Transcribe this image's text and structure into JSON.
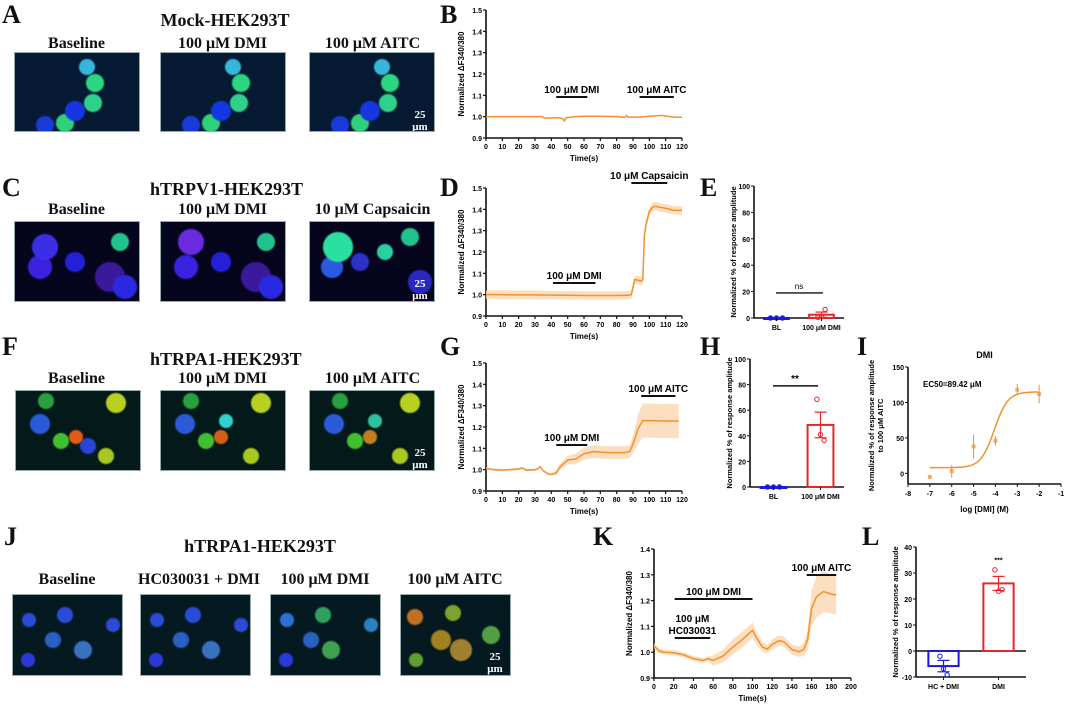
{
  "figure": {
    "panels": {
      "A": {
        "label": "A",
        "title": "Mock-HEK293T",
        "conditions": [
          "Baseline",
          "100 μM DMI",
          "100 μM AITC"
        ],
        "scale": "25 μm"
      },
      "B": {
        "label": "B"
      },
      "C": {
        "label": "C",
        "title": "hTRPV1-HEK293T",
        "conditions": [
          "Baseline",
          "100 μM DMI",
          "10 μM Capsaicin"
        ],
        "scale": "25 μm"
      },
      "D": {
        "label": "D"
      },
      "E": {
        "label": "E"
      },
      "F": {
        "label": "F",
        "title": "hTRPA1-HEK293T",
        "conditions": [
          "Baseline",
          "100 μM DMI",
          "100 μM AITC"
        ],
        "scale": "25 μm"
      },
      "G": {
        "label": "G"
      },
      "H": {
        "label": "H"
      },
      "I": {
        "label": "I"
      },
      "J": {
        "label": "J",
        "title": "hTRPA1-HEK293T",
        "conditions": [
          "Baseline",
          "HC030031 + DMI",
          "100 μM DMI",
          "100 μM AITC"
        ],
        "scale": "25 μm"
      },
      "K": {
        "label": "K"
      },
      "L": {
        "label": "L"
      }
    },
    "colors": {
      "trace": "#f0922e",
      "band": "#fbd7b0",
      "bl": "#1a1adb",
      "dmi": "#e8252a",
      "black": "#111111"
    }
  },
  "chart_data": [
    {
      "panel": "B",
      "type": "line",
      "title": "",
      "xlabel": "Time(s)",
      "ylabel": "Normalized ΔF340/380",
      "xlim": [
        0,
        120
      ],
      "ylim": [
        0.9,
        1.5
      ],
      "xticks": [
        0,
        10,
        20,
        30,
        40,
        50,
        60,
        70,
        80,
        90,
        100,
        110,
        120
      ],
      "yticks": [
        0.9,
        1.0,
        1.1,
        1.2,
        1.3,
        1.4,
        1.5
      ],
      "annotations": [
        {
          "text": "100 μM DMI",
          "x_start": 43,
          "x_end": 62
        },
        {
          "text": "100 μM  AITC",
          "x_start": 94,
          "x_end": 115
        }
      ],
      "x": [
        0,
        10,
        20,
        30,
        34,
        36,
        45,
        47,
        48,
        49,
        55,
        60,
        70,
        80,
        85,
        86,
        87,
        90,
        95,
        100,
        108,
        110,
        115,
        120
      ],
      "y": [
        1.0,
        1.0,
        1.0,
        1.0,
        1.0,
        0.993,
        0.995,
        0.99,
        0.98,
        0.995,
        1.0,
        1.002,
        1.002,
        1.0,
        0.997,
        1.005,
        0.998,
        0.998,
        0.998,
        1.002,
        1.006,
        1.003,
        0.998,
        0.997
      ],
      "band": 0.002
    },
    {
      "panel": "D",
      "type": "line",
      "title": "",
      "xlabel": "Time(s)",
      "ylabel": "Normalized ΔF340/380",
      "xlim": [
        0,
        120
      ],
      "ylim": [
        0.9,
        1.5
      ],
      "xticks": [
        0,
        10,
        20,
        30,
        40,
        50,
        60,
        70,
        80,
        90,
        100,
        110,
        120
      ],
      "yticks": [
        0.9,
        1.0,
        1.1,
        1.2,
        1.3,
        1.4,
        1.5
      ],
      "annotations": [
        {
          "text": "100 μM DMI",
          "x_start": 41,
          "x_end": 67
        },
        {
          "text": "10 μM  Capsaicin",
          "x_start": 89,
          "x_end": 111
        }
      ],
      "x": [
        0,
        10,
        20,
        30,
        40,
        50,
        60,
        70,
        80,
        87,
        89,
        91,
        93,
        95,
        96,
        97,
        98,
        100,
        102,
        104,
        106,
        110,
        115,
        120
      ],
      "y": [
        1.0,
        1.0,
        0.999,
        0.999,
        0.998,
        0.997,
        0.996,
        0.996,
        0.996,
        0.997,
        1.0,
        1.07,
        1.068,
        1.063,
        1.07,
        1.28,
        1.33,
        1.39,
        1.41,
        1.415,
        1.41,
        1.405,
        1.395,
        1.395
      ],
      "band": 0.02
    },
    {
      "panel": "E",
      "type": "bar",
      "title": "",
      "xlabel": "",
      "ylabel": "Normalized % of response amplitude",
      "categories": [
        "BL",
        "100 μM DMI"
      ],
      "values": [
        0,
        2.5
      ],
      "sem": [
        0,
        2.0
      ],
      "points": [
        [
          0,
          0,
          0
        ],
        [
          0.5,
          1.0,
          6.5
        ]
      ],
      "ylim": [
        0,
        100
      ],
      "yticks": [
        0,
        20,
        40,
        60,
        80,
        100
      ],
      "significance": "ns"
    },
    {
      "panel": "G",
      "type": "line",
      "title": "",
      "xlabel": "Time(s)",
      "ylabel": "Normalized ΔF340/380",
      "xlim": [
        0,
        120
      ],
      "ylim": [
        0.9,
        1.5
      ],
      "xticks": [
        0,
        10,
        20,
        30,
        40,
        50,
        60,
        70,
        80,
        90,
        100,
        110,
        120
      ],
      "yticks": [
        0.9,
        1.0,
        1.1,
        1.2,
        1.3,
        1.4,
        1.5
      ],
      "annotations": [
        {
          "text": "100 μM DMI",
          "x_start": 43,
          "x_end": 62
        },
        {
          "text": "100 μM  AITC",
          "x_start": 95,
          "x_end": 116
        }
      ],
      "x": [
        0,
        5,
        10,
        15,
        20,
        22,
        25,
        30,
        32,
        33,
        35,
        38,
        40,
        43,
        45,
        50,
        55,
        57,
        60,
        63,
        66,
        70,
        75,
        80,
        85,
        88,
        90,
        93,
        96,
        100,
        110,
        118
      ],
      "y": [
        1.005,
        1.0,
        0.998,
        1.0,
        1.003,
        1.008,
        0.997,
        1.0,
        1.005,
        1.014,
        0.995,
        0.98,
        0.978,
        0.985,
        1.01,
        1.045,
        1.05,
        1.06,
        1.075,
        1.08,
        1.085,
        1.082,
        1.08,
        1.08,
        1.08,
        1.085,
        1.12,
        1.19,
        1.23,
        1.23,
        1.228,
        1.228
      ],
      "band": [
        0.005,
        0.005,
        0.005,
        0.005,
        0.005,
        0.005,
        0.005,
        0.005,
        0.005,
        0.005,
        0.005,
        0.005,
        0.005,
        0.01,
        0.015,
        0.02,
        0.025,
        0.025,
        0.028,
        0.03,
        0.03,
        0.03,
        0.03,
        0.03,
        0.03,
        0.03,
        0.04,
        0.07,
        0.08,
        0.08,
        0.08,
        0.08
      ]
    },
    {
      "panel": "H",
      "type": "bar",
      "title": "",
      "xlabel": "",
      "ylabel": "Normalized % of response amplitude",
      "categories": [
        "BL",
        "100 μM DMI"
      ],
      "values": [
        0,
        48.5
      ],
      "sem": [
        0,
        10
      ],
      "points": [
        [
          0,
          0,
          0
        ],
        [
          68.5,
          41,
          36.5
        ]
      ],
      "ylim": [
        0,
        100
      ],
      "yticks": [
        0,
        20,
        40,
        60,
        80,
        100
      ],
      "significance": "**"
    },
    {
      "panel": "I",
      "type": "scatter",
      "title": "DMI",
      "xlabel": "log [DMI] (M)",
      "ylabel": "Normalized % of response amplitude to 100 μM AITC",
      "xlim": [
        -8,
        -1
      ],
      "ylim": [
        -15,
        150
      ],
      "xticks": [
        -8,
        -7,
        -6,
        -5,
        -4,
        -3,
        -2,
        -1
      ],
      "yticks": [
        0,
        50,
        100,
        150
      ],
      "annotation": "EC50=89.42 μM",
      "x": [
        -7,
        -6,
        -5,
        -4,
        -3,
        -2
      ],
      "y": [
        -5,
        3,
        38,
        46,
        118,
        112
      ],
      "err": [
        2,
        9,
        17,
        7,
        8,
        13
      ],
      "fit": {
        "bottom": 8,
        "top": 115,
        "logEC50": -4.05,
        "hill": 1.4
      }
    },
    {
      "panel": "K",
      "type": "line",
      "title": "",
      "xlabel": "Time(s)",
      "ylabel": "Normalized ΔF340/380",
      "xlim": [
        0,
        200
      ],
      "ylim": [
        0.9,
        1.4
      ],
      "xticks": [
        0,
        20,
        40,
        60,
        80,
        100,
        120,
        140,
        160,
        180,
        200
      ],
      "yticks": [
        0.9,
        1.0,
        1.1,
        1.2,
        1.3,
        1.4
      ],
      "annotations": [
        {
          "text": "100 μM DMI",
          "x_start": 21,
          "x_end": 100
        },
        {
          "text": "100 μM HC030031",
          "x_start": 21,
          "x_end": 57
        },
        {
          "text": "100 μM  AITC",
          "x_start": 155,
          "x_end": 185
        }
      ],
      "x": [
        0,
        5,
        10,
        20,
        30,
        40,
        50,
        55,
        60,
        70,
        80,
        90,
        100,
        105,
        110,
        115,
        120,
        127,
        132,
        140,
        147,
        152,
        156,
        160,
        165,
        172,
        180,
        185
      ],
      "y": [
        1.025,
        1.005,
        1.0,
        0.998,
        0.99,
        0.975,
        0.968,
        0.975,
        0.968,
        0.985,
        1.02,
        1.05,
        1.085,
        1.05,
        1.02,
        1.012,
        1.03,
        1.045,
        1.04,
        1.01,
        1.002,
        1.01,
        1.05,
        1.17,
        1.215,
        1.235,
        1.225,
        1.222
      ],
      "band": [
        0.01,
        0.01,
        0.01,
        0.01,
        0.01,
        0.01,
        0.01,
        0.01,
        0.02,
        0.025,
        0.03,
        0.03,
        0.03,
        0.025,
        0.02,
        0.015,
        0.02,
        0.02,
        0.02,
        0.02,
        0.02,
        0.025,
        0.04,
        0.07,
        0.08,
        0.08,
        0.075,
        0.075
      ]
    },
    {
      "panel": "L",
      "type": "bar",
      "title": "",
      "xlabel": "",
      "ylabel": "Normalized % of response amplitude",
      "categories": [
        "HC + DMI",
        "DMI"
      ],
      "values": [
        -5.8,
        26
      ],
      "sem": [
        2.2,
        2.7
      ],
      "points": [
        [
          -2,
          -6.8,
          -9.2
        ],
        [
          31.2,
          23,
          23.6
        ]
      ],
      "ylim": [
        -10,
        40
      ],
      "yticks": [
        -10,
        0,
        10,
        20,
        30,
        40
      ],
      "significance": "***"
    }
  ]
}
